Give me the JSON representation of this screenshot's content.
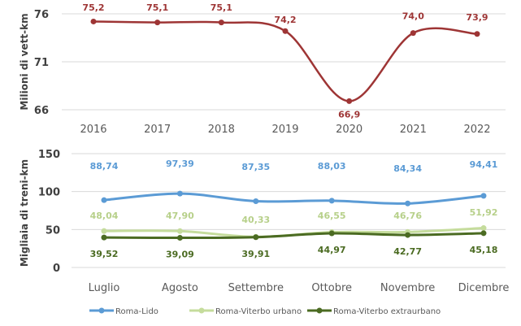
{
  "chart_data": [
    {
      "type": "line",
      "ylabel": "Milioni di vett-km",
      "categories": [
        "2016",
        "2017",
        "2018",
        "2019",
        "2020",
        "2021",
        "2022"
      ],
      "yticks": [
        "66",
        "71",
        "76"
      ],
      "ylim": [
        66,
        76
      ],
      "grid": true,
      "smooth": true,
      "series": [
        {
          "values": [
            75.2,
            75.1,
            75.1,
            74.2,
            66.9,
            74.0,
            73.9
          ],
          "labels": [
            "75,2",
            "75,1",
            "75,1",
            "74,2",
            "66,9",
            "74,0",
            "73,9"
          ],
          "color": "#9e3535"
        }
      ]
    },
    {
      "type": "line",
      "ylabel": "Migliaia di treni-km",
      "categories": [
        "Luglio",
        "Agosto",
        "Settembre",
        "Ottobre",
        "Novembre",
        "Dicembre"
      ],
      "yticks": [
        "0",
        "50",
        "100",
        "150"
      ],
      "ylim": [
        0,
        150
      ],
      "grid": true,
      "smooth": true,
      "legend_position": "bottom",
      "series": [
        {
          "name": "Roma-Lido",
          "color": "#5b9bd5",
          "values": [
            88.74,
            97.39,
            87.35,
            88.03,
            84.34,
            94.41
          ],
          "labels": [
            "88,74",
            "97,39",
            "87,35",
            "88,03",
            "84,34",
            "94,41"
          ],
          "label_pos": "above"
        },
        {
          "name": "Roma-Viterbo urbano",
          "color": "#c5dc9c",
          "values": [
            48.04,
            47.9,
            40.33,
            46.55,
            46.76,
            51.92
          ],
          "labels": [
            "48,04",
            "47,90",
            "40,33",
            "46,55",
            "46,76",
            "51,92"
          ],
          "label_pos": "above"
        },
        {
          "name": "Roma-Viterbo extraurbano",
          "color": "#4b6b22",
          "values": [
            39.52,
            39.09,
            39.91,
            44.97,
            42.77,
            45.18
          ],
          "labels": [
            "39,52",
            "39,09",
            "39,91",
            "44,97",
            "42,77",
            "45,18"
          ],
          "label_pos": "below"
        }
      ]
    }
  ]
}
